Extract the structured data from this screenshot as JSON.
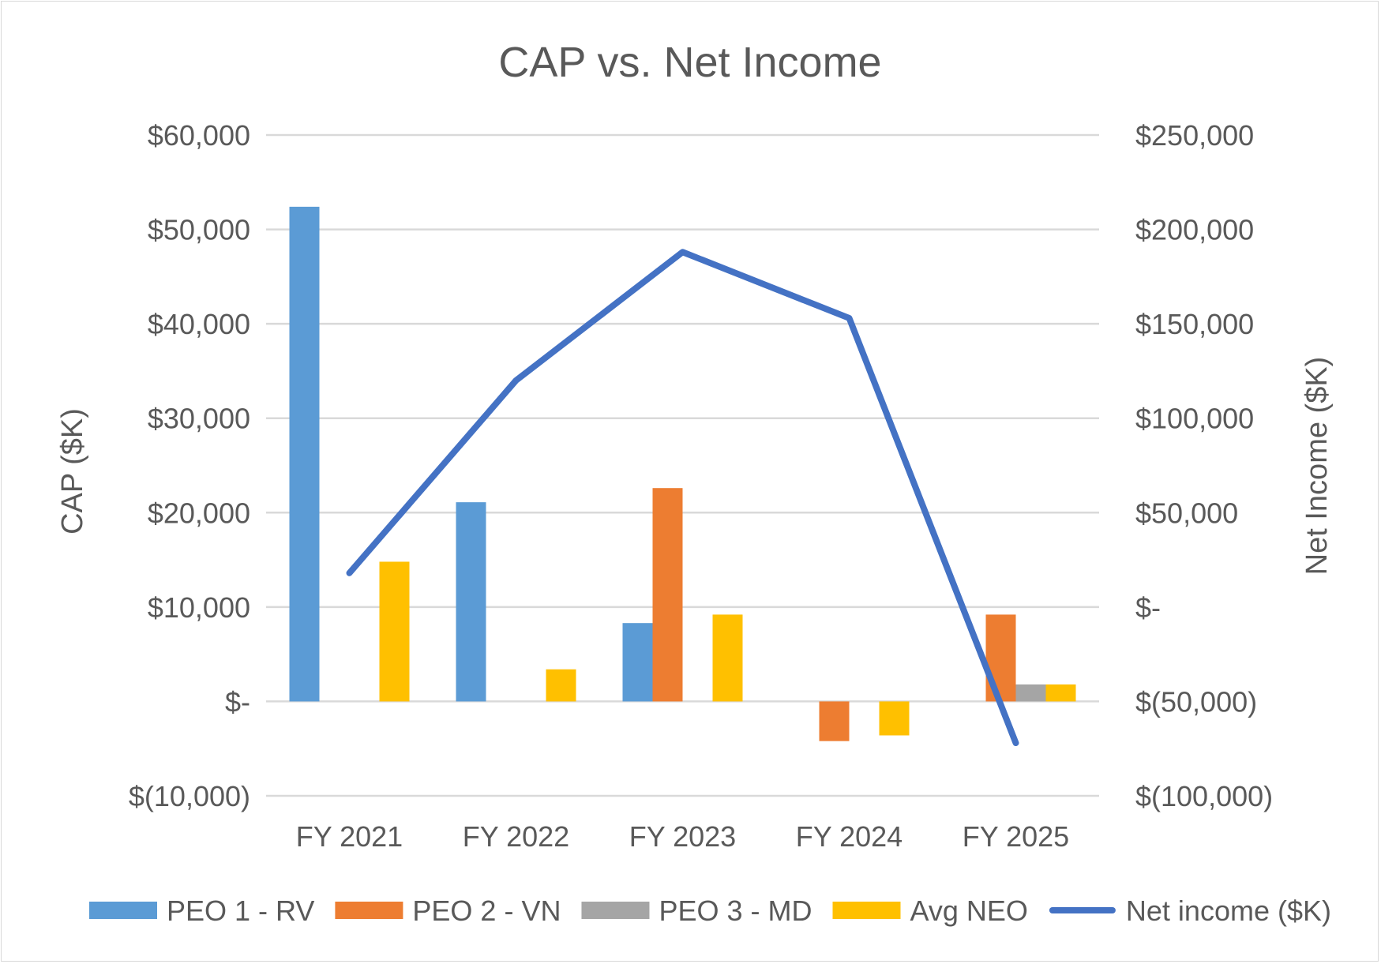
{
  "chart_data": {
    "type": "bar",
    "title": "CAP vs. Net Income",
    "categories": [
      "FY 2021",
      "FY 2022",
      "FY 2023",
      "FY 2024",
      "FY 2025"
    ],
    "ylabel": "CAP ($K)",
    "y2label": "Net Income ($K)",
    "ylim": [
      -10000,
      60000
    ],
    "y2lim": [
      -100000,
      250000
    ],
    "yticks": [
      {
        "value": 60000,
        "label": "$60,000"
      },
      {
        "value": 50000,
        "label": "$50,000"
      },
      {
        "value": 40000,
        "label": "$40,000"
      },
      {
        "value": 30000,
        "label": "$30,000"
      },
      {
        "value": 20000,
        "label": "$20,000"
      },
      {
        "value": 10000,
        "label": "$10,000"
      },
      {
        "value": 0,
        "label": "$-"
      },
      {
        "value": -10000,
        "label": "$(10,000)"
      }
    ],
    "y2ticks": [
      {
        "value": 250000,
        "label": "$250,000"
      },
      {
        "value": 200000,
        "label": "$200,000"
      },
      {
        "value": 150000,
        "label": "$150,000"
      },
      {
        "value": 100000,
        "label": "$100,000"
      },
      {
        "value": 50000,
        "label": "$50,000"
      },
      {
        "value": 0,
        "label": "$-"
      },
      {
        "value": -50000,
        "label": "$(50,000)"
      },
      {
        "value": -100000,
        "label": "$(100,000)"
      }
    ],
    "grid": true,
    "legend_position": "bottom",
    "bar_series": [
      {
        "name": "PEO 1 - RV",
        "color": "#5b9bd5",
        "values": [
          52400,
          21100,
          8300,
          null,
          null
        ]
      },
      {
        "name": "PEO 2 - VN",
        "color": "#ed7d31",
        "values": [
          null,
          null,
          22600,
          -4200,
          9200
        ]
      },
      {
        "name": "PEO 3 - MD",
        "color": "#a5a5a5",
        "values": [
          null,
          null,
          null,
          null,
          1800
        ]
      },
      {
        "name": "Avg NEO",
        "color": "#ffc000",
        "values": [
          14800,
          3400,
          9200,
          -3600,
          1800
        ]
      }
    ],
    "line_series": [
      {
        "name": "Net income ($K)",
        "color": "#4472c4",
        "axis": "right",
        "values": [
          18000,
          120000,
          188000,
          153000,
          -72000
        ]
      }
    ]
  }
}
